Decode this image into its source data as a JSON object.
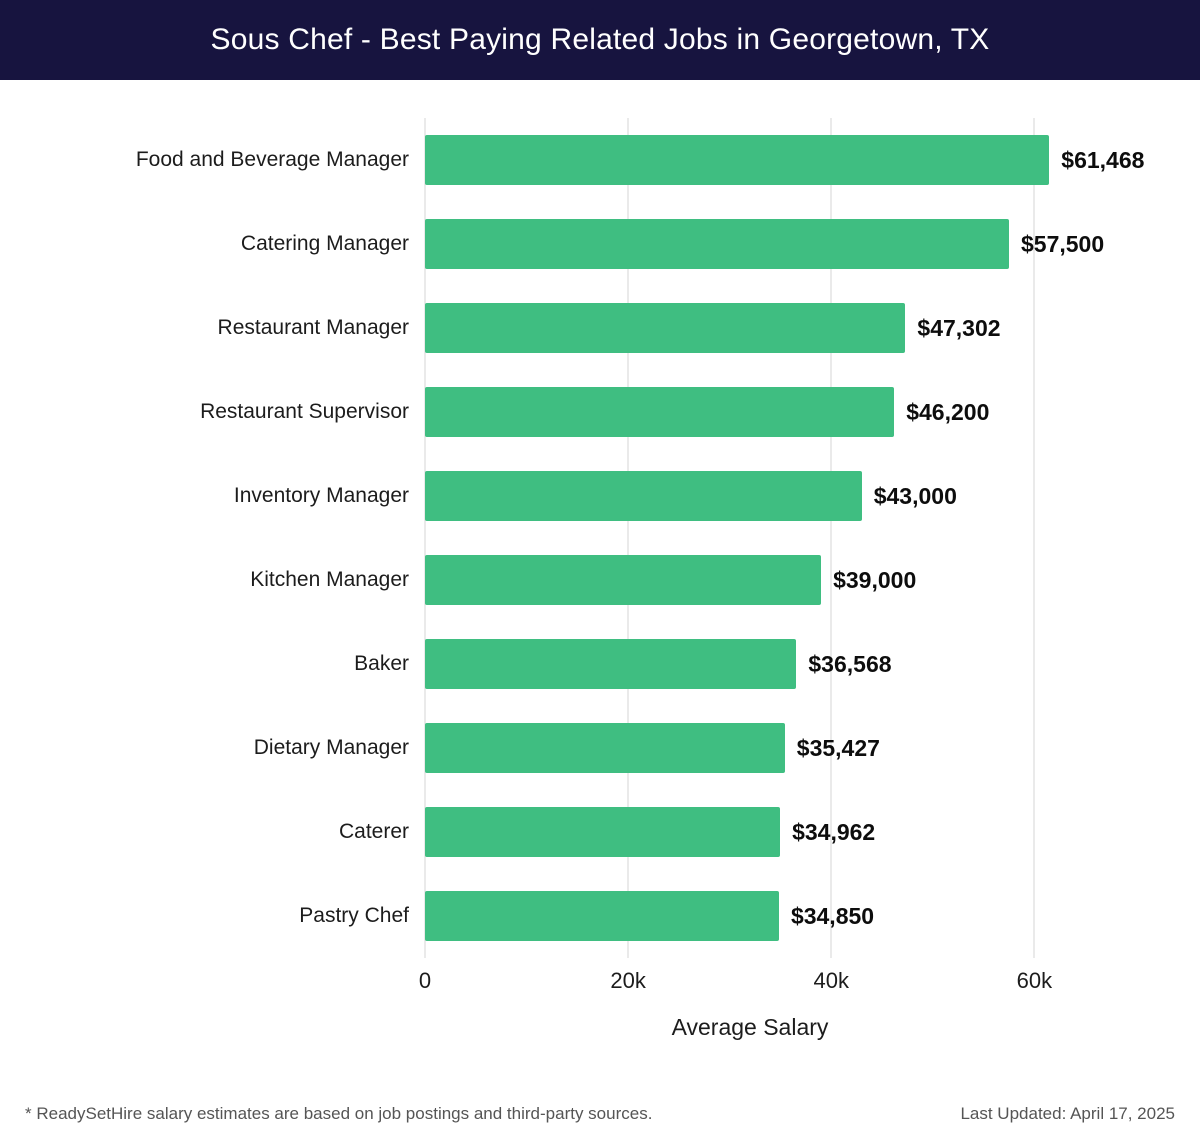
{
  "header": {
    "title": "Sous Chef - Best Paying Related Jobs in Georgetown, TX"
  },
  "chart_data": {
    "type": "bar",
    "orientation": "horizontal",
    "title": "Sous Chef - Best Paying Related Jobs in Georgetown, TX",
    "categories": [
      "Food and Beverage Manager",
      "Catering Manager",
      "Restaurant Manager",
      "Restaurant Supervisor",
      "Inventory Manager",
      "Kitchen Manager",
      "Baker",
      "Dietary Manager",
      "Caterer",
      "Pastry Chef"
    ],
    "values": [
      61468,
      57500,
      47302,
      46200,
      43000,
      39000,
      36568,
      35427,
      34962,
      34850
    ],
    "value_labels": [
      "$61,468",
      "$57,500",
      "$47,302",
      "$46,200",
      "$43,000",
      "$39,000",
      "$36,568",
      "$35,427",
      "$34,962",
      "$34,850"
    ],
    "xlabel": "Average Salary",
    "ylabel": "",
    "xlim": [
      0,
      64000
    ],
    "xticks": [
      {
        "value": 0,
        "label": "0"
      },
      {
        "value": 20000,
        "label": "20k"
      },
      {
        "value": 40000,
        "label": "40k"
      },
      {
        "value": 60000,
        "label": "60k"
      }
    ],
    "grid": true,
    "legend": false,
    "bar_color": "#3fbe81"
  },
  "colors": {
    "header_bg": "#17143f",
    "bar": "#3fbe81",
    "gridline": "#d6d6d6"
  },
  "footer": {
    "note": "* ReadySetHire salary estimates are based on job postings and third-party sources.",
    "last_updated": "Last Updated: April 17, 2025"
  }
}
